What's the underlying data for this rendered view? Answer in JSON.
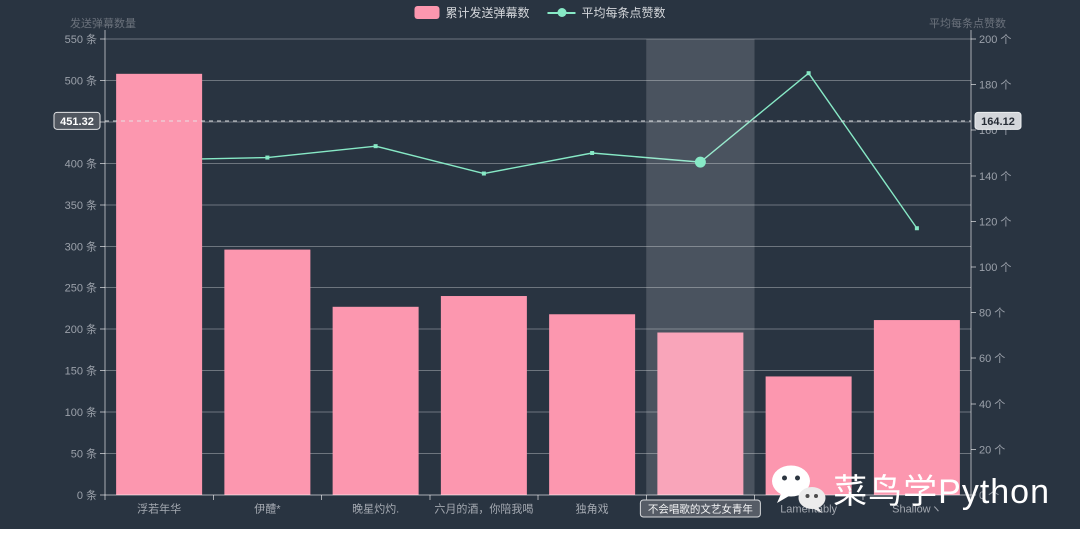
{
  "legend": {
    "items": [
      {
        "label": "累计发送弹幕数",
        "type": "bar",
        "color": "#fc97af"
      },
      {
        "label": "平均每条点赞数",
        "type": "line",
        "color": "#87e9c6"
      }
    ]
  },
  "chart_data": {
    "type": "bar+line",
    "categories": [
      "浮若年华",
      "伊醴*",
      "晚星灼灼.",
      "六月的酒，你陪我喝",
      "独角戏",
      "不会唱歌的文艺女青年",
      "Lamentably",
      "Shallowヽ"
    ],
    "series": [
      {
        "name": "累计发送弹幕数",
        "type": "bar",
        "y_axis": "left",
        "color": "#fc97af",
        "values": [
          508,
          296,
          227,
          240,
          218,
          196,
          143,
          211
        ]
      },
      {
        "name": "平均每条点赞数",
        "type": "line",
        "y_axis": "right",
        "color": "#87e9c6",
        "values": [
          147,
          148,
          153,
          141,
          150,
          146,
          185,
          117
        ]
      }
    ],
    "left_axis": {
      "name": "发送弹幕数量",
      "unit": "条",
      "min": 0,
      "max": 550,
      "step": 50
    },
    "right_axis": {
      "name": "平均每条点赞数",
      "unit": "个",
      "min": 0,
      "max": 200,
      "step": 20
    },
    "crosshair": {
      "left_label": "451.32",
      "right_label": "164.12",
      "left_value": 451.32
    },
    "highlighted_index": 5,
    "grid": true,
    "legend_position": "top-center",
    "background": "#293441"
  },
  "colors": {
    "background": "#293441",
    "bar": "#fc97af",
    "line": "#87e9c6",
    "grid_line": "rgba(255,255,255,0.32)",
    "axis_line": "rgba(255,255,255,0.6)",
    "tick_label": "#9ba1aa",
    "category_label": "#a4a9b1",
    "band": "rgba(236,240,245,0.17)",
    "cross_line": "#e8eaec",
    "cross_box_left_bg": "#50565f",
    "cross_box_left_text": "#ffffff",
    "cross_box_right_bg": "#d3d6da",
    "cross_box_right_text": "#262c35",
    "cat_box_bg": "#565c66",
    "cat_box_border": "#d6d8db",
    "cat_box_text": "#f4f5f6"
  },
  "watermark": {
    "text": "菜鸟学Python"
  }
}
